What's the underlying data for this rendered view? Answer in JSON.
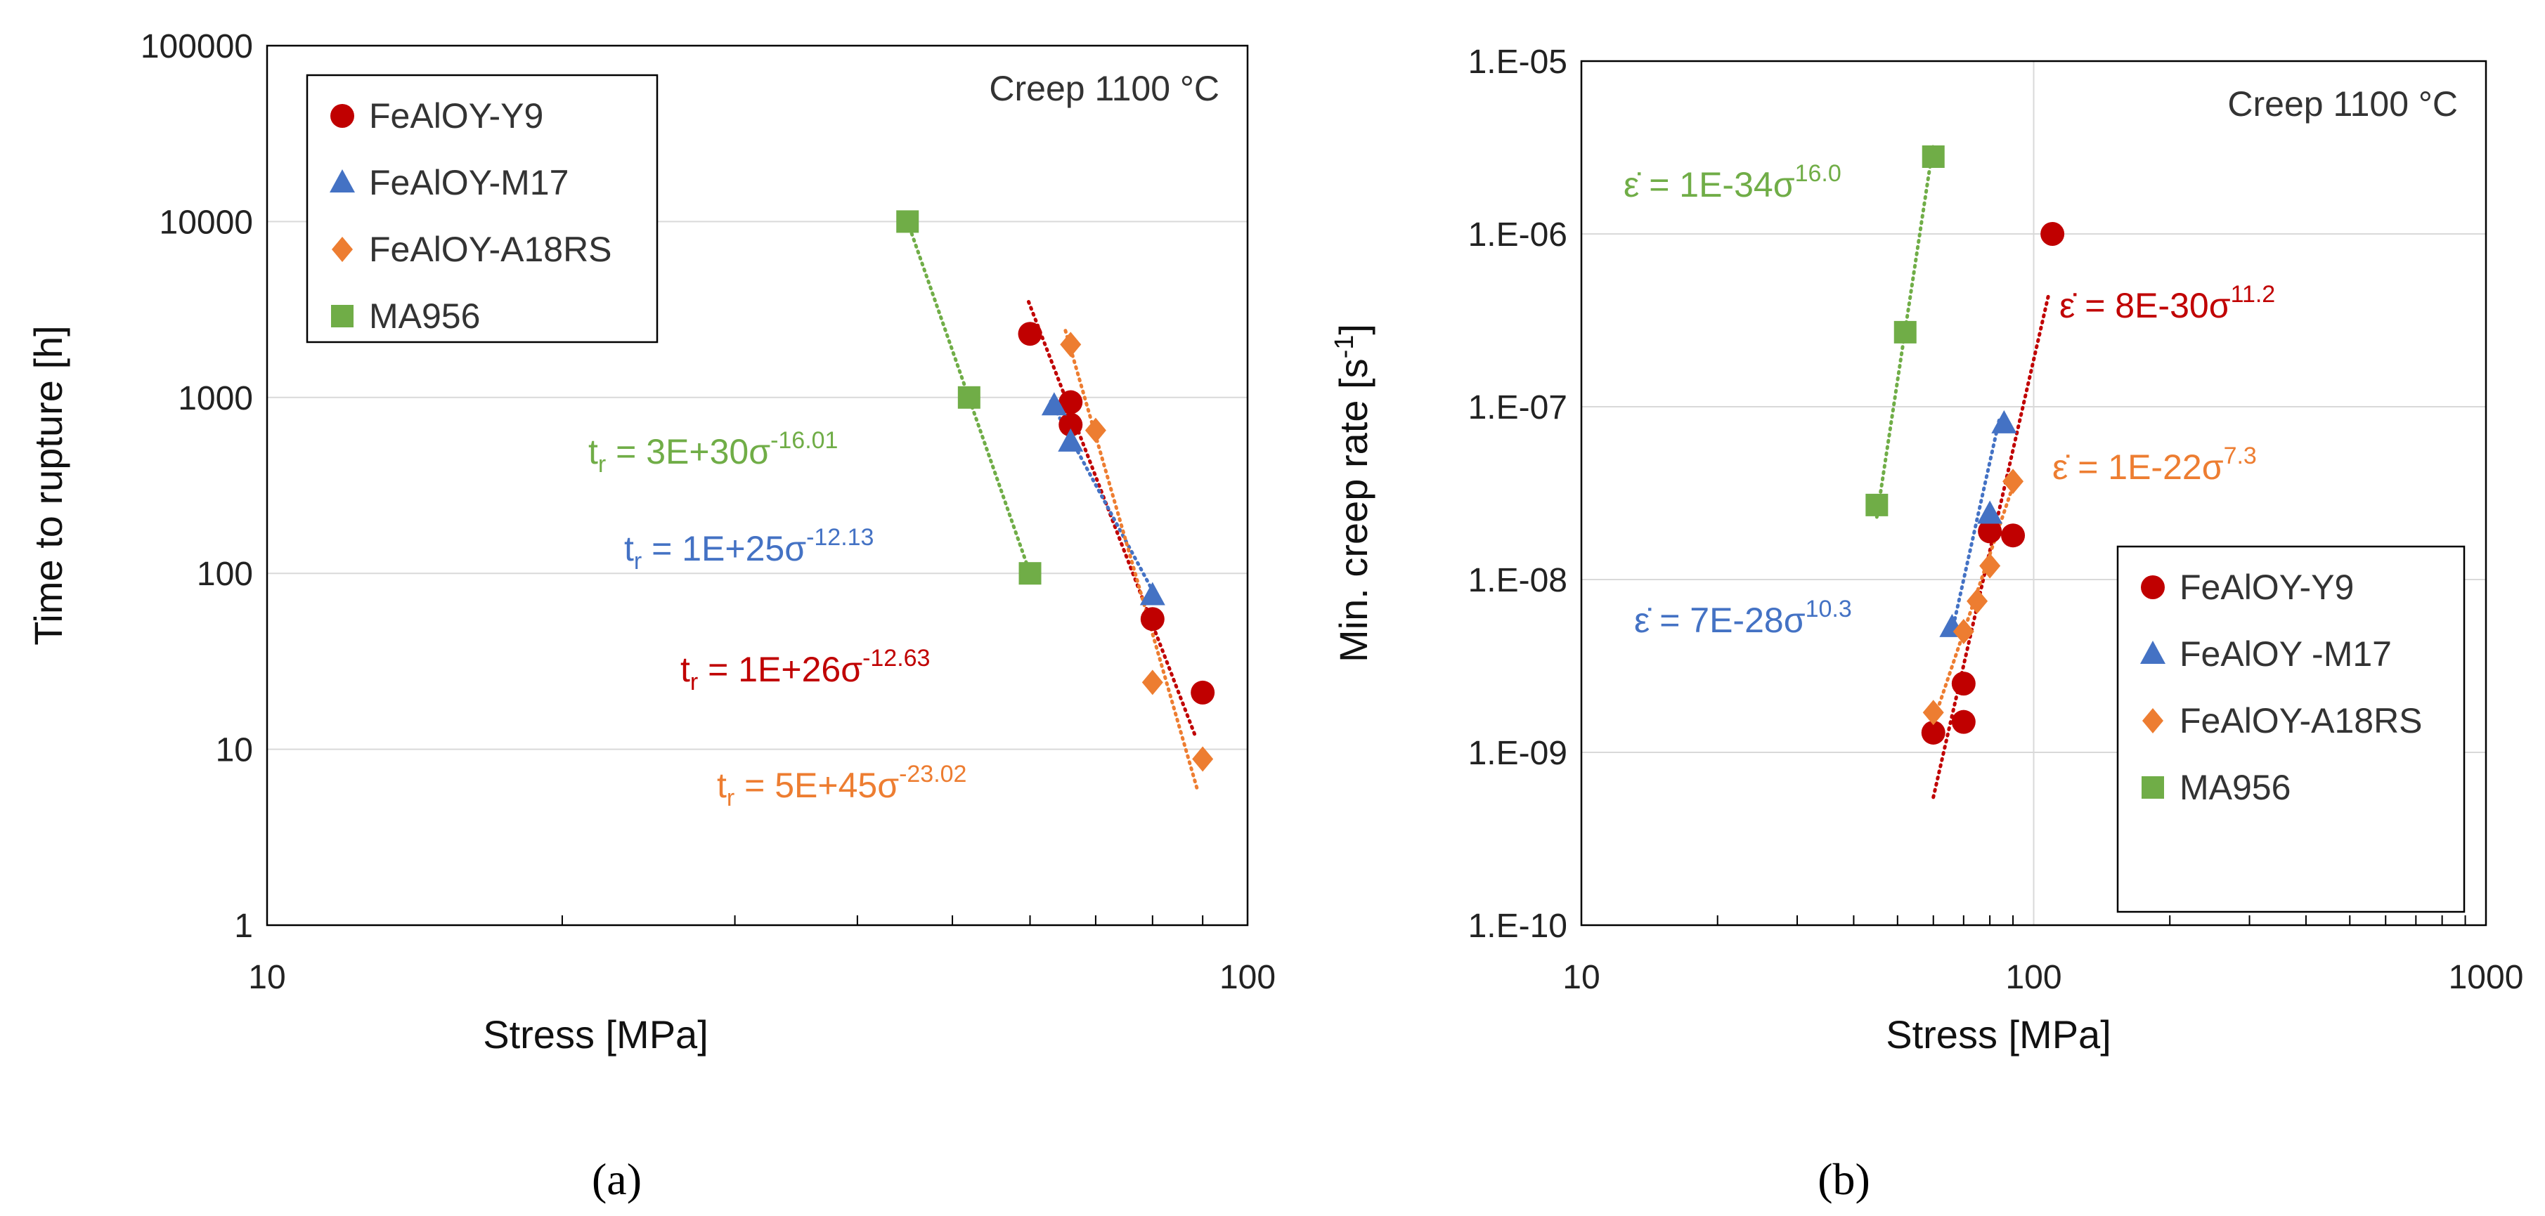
{
  "chart_data": [
    {
      "type": "scatter",
      "panel_label": "(a)",
      "annotation": "Creep 1100 °C",
      "xlabel": "Stress [MPa]",
      "ylabel": "Time to rupture [h]",
      "xscale": "log",
      "yscale": "log",
      "xlim": [
        10,
        100
      ],
      "ylim": [
        1,
        100000
      ],
      "x_ticks": [
        10,
        100
      ],
      "x_tick_labels": [
        "10",
        "100"
      ],
      "y_ticks": [
        1,
        10,
        100,
        1000,
        10000,
        100000
      ],
      "y_tick_labels": [
        "1",
        "10",
        "100",
        "1000",
        "10000",
        "100000"
      ],
      "grid": "horizontal major",
      "legend_position": "top-left",
      "series": [
        {
          "name": "FeAlOY-Y9",
          "color": "#c00000",
          "marker": "circle",
          "points": [
            [
              60,
              2300
            ],
            [
              66,
              940
            ],
            [
              66,
              700
            ],
            [
              80,
              55
            ],
            [
              90,
              21
            ]
          ],
          "fit": {
            "x": [
              59.8,
              88.4
            ],
            "y": [
              3500,
              12
            ]
          },
          "equation": {
            "base": "t",
            "sub": "r",
            "text": " = 1E+26σ",
            "exp": "-12.63"
          }
        },
        {
          "name": "FeAlOY-M17",
          "color": "#4472c4",
          "marker": "triangle",
          "points": [
            [
              63.5,
              900
            ],
            [
              66,
              560
            ],
            [
              80,
              75
            ]
          ],
          "fit": {
            "x": [
              63.0,
              80.8
            ],
            "y": [
              950,
              72
            ]
          },
          "equation": {
            "base": "t",
            "sub": "r",
            "text": " = 1E+25σ",
            "exp": "-12.13"
          }
        },
        {
          "name": "FeAlOY-A18RS",
          "color": "#ed7d31",
          "marker": "diamond",
          "points": [
            [
              66,
              2000
            ],
            [
              70,
              650
            ],
            [
              80,
              24
            ],
            [
              90,
              8.8
            ]
          ],
          "fit": {
            "x": [
              65.2,
              88.8
            ],
            "y": [
              2400,
              6
            ]
          },
          "equation": {
            "base": "t",
            "sub": "r",
            "text": " = 5E+45σ",
            "exp": "-23.02"
          }
        },
        {
          "name": "MA956",
          "color": "#70ad47",
          "marker": "square",
          "points": [
            [
              45,
              10000
            ],
            [
              52,
              1000
            ],
            [
              60,
              100
            ]
          ],
          "fit": {
            "x": [
              45,
              60
            ],
            "y": [
              10000,
              100
            ]
          },
          "equation": {
            "base": "t",
            "sub": "r",
            "text": " = 3E+30σ",
            "exp": "-16.01"
          }
        }
      ]
    },
    {
      "type": "scatter",
      "panel_label": "(b)",
      "annotation": "Creep 1100 °C",
      "xlabel": "Stress [MPa]",
      "ylabel_main": "Min. creep rate [s",
      "ylabel_sup": "-1",
      "ylabel_end": "]",
      "xscale": "log",
      "yscale": "log",
      "xlim": [
        10,
        1000
      ],
      "ylim": [
        1e-10,
        1e-05
      ],
      "x_ticks": [
        10,
        100,
        1000
      ],
      "x_tick_labels": [
        "10",
        "100",
        "1000"
      ],
      "y_ticks": [
        1e-10,
        1e-09,
        1e-08,
        1e-07,
        1e-06,
        1e-05
      ],
      "y_tick_labels": [
        "1.E-10",
        "1.E-09",
        "1.E-08",
        "1.E-07",
        "1.E-06",
        "1.E-05"
      ],
      "grid": "major both",
      "legend_position": "bottom-right",
      "series": [
        {
          "name": "FeAlOY-Y9",
          "color": "#c00000",
          "marker": "circle",
          "points": [
            [
              60,
              1.3e-09
            ],
            [
              70,
              1.5e-09
            ],
            [
              70,
              2.5e-09
            ],
            [
              80,
              1.9e-08
            ],
            [
              90,
              1.8e-08
            ],
            [
              110,
              1e-06
            ]
          ],
          "fit": {
            "x": [
              60,
              108
            ],
            "y": [
              5.5e-10,
              4.5e-07
            ]
          },
          "equation": {
            "base": "ε̇",
            "text": " = 8E-30σ",
            "exp": "11.2"
          }
        },
        {
          "name": "FeAlOY -M17",
          "color": "#4472c4",
          "marker": "triangle",
          "points": [
            [
              66,
              5.3e-09
            ],
            [
              80,
              2.4e-08
            ],
            [
              86,
              8e-08
            ]
          ],
          "fit": {
            "x": [
              66,
              84
            ],
            "y": [
              5e-09,
              8.5e-08
            ]
          },
          "equation": {
            "base": "ε̇",
            "text": " = 7E-28σ",
            "exp": "10.3"
          }
        },
        {
          "name": "FeAlOY-A18RS",
          "color": "#ed7d31",
          "marker": "diamond",
          "points": [
            [
              60,
              1.7e-09
            ],
            [
              70,
              5e-09
            ],
            [
              75,
              7.5e-09
            ],
            [
              80,
              1.2e-08
            ],
            [
              90,
              3.7e-08
            ]
          ],
          "fit": {
            "x": [
              60,
              91
            ],
            "y": [
              1.5e-09,
              3.8e-08
            ]
          },
          "equation": {
            "base": "ε̇",
            "text": " = 1E-22σ",
            "exp": "7.3"
          }
        },
        {
          "name": "MA956",
          "color": "#70ad47",
          "marker": "square",
          "points": [
            [
              45,
              2.7e-08
            ],
            [
              52,
              2.7e-07
            ],
            [
              60,
              2.8e-06
            ]
          ],
          "fit": {
            "x": [
              45,
              60
            ],
            "y": [
              2.3e-08,
              3.3e-06
            ]
          },
          "equation": {
            "base": "ε̇",
            "text": " = 1E-34σ",
            "exp": "16.0"
          }
        }
      ]
    }
  ]
}
